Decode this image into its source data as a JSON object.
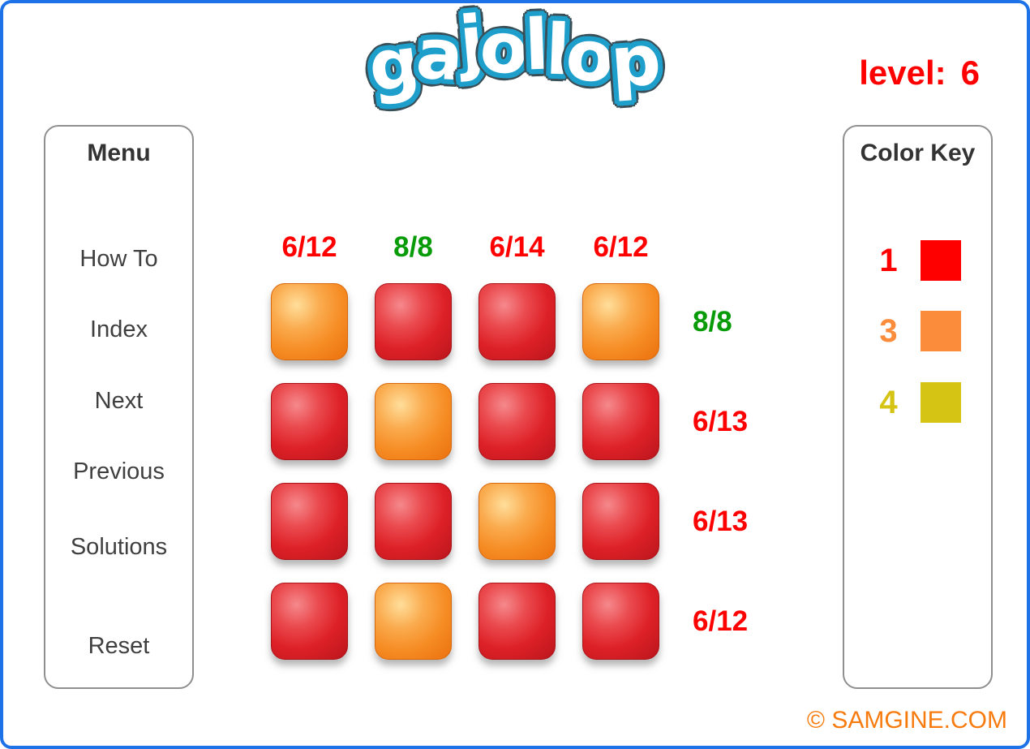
{
  "page": {
    "border_color": "#1E72E8",
    "background_color": "#FFFFFF"
  },
  "logo": {
    "text": "gajollop",
    "letters": [
      "g",
      "a",
      "j",
      "o",
      "l",
      "l",
      "o",
      "p"
    ],
    "fill_color": "#FFFFFF",
    "outline_color": "#1E9FCB"
  },
  "level": {
    "label": "level:",
    "value": "6",
    "color": "#FF0000"
  },
  "menu": {
    "title": "Menu",
    "items": [
      {
        "label": "How To"
      },
      {
        "label": "Index"
      },
      {
        "label": "Next"
      },
      {
        "label": "Previous"
      },
      {
        "label": "Solutions"
      },
      {
        "label": "Reset"
      }
    ]
  },
  "board": {
    "column_headers": [
      {
        "label": "6/12",
        "color": "#FF0000"
      },
      {
        "label": "8/8",
        "color": "#089B08"
      },
      {
        "label": "6/14",
        "color": "#FF0000"
      },
      {
        "label": "6/12",
        "color": "#FF0000"
      }
    ],
    "row_labels": [
      {
        "label": "8/8",
        "color": "#089B08"
      },
      {
        "label": "6/13",
        "color": "#FF0000"
      },
      {
        "label": "6/13",
        "color": "#FF0000"
      },
      {
        "label": "6/12",
        "color": "#FF0000"
      }
    ],
    "rows": [
      [
        "orange",
        "red",
        "red",
        "orange"
      ],
      [
        "red",
        "orange",
        "red",
        "red"
      ],
      [
        "red",
        "red",
        "orange",
        "red"
      ],
      [
        "red",
        "orange",
        "red",
        "red"
      ]
    ],
    "tile_colors": {
      "red": {
        "base": "#DD2027",
        "highlight": "#F5898C",
        "edge": "#A91318"
      },
      "orange": {
        "base": "#F68C24",
        "highlight": "#FFDE9B",
        "edge": "#D8680B"
      }
    }
  },
  "color_key": {
    "title": "Color Key",
    "entries": [
      {
        "number": "1",
        "color": "#FF0000"
      },
      {
        "number": "3",
        "color": "#FB8C3C"
      },
      {
        "number": "4",
        "color": "#D5C414"
      }
    ]
  },
  "footer": {
    "copyright": "© SAMGINE.COM",
    "color": "#F87B0E"
  }
}
